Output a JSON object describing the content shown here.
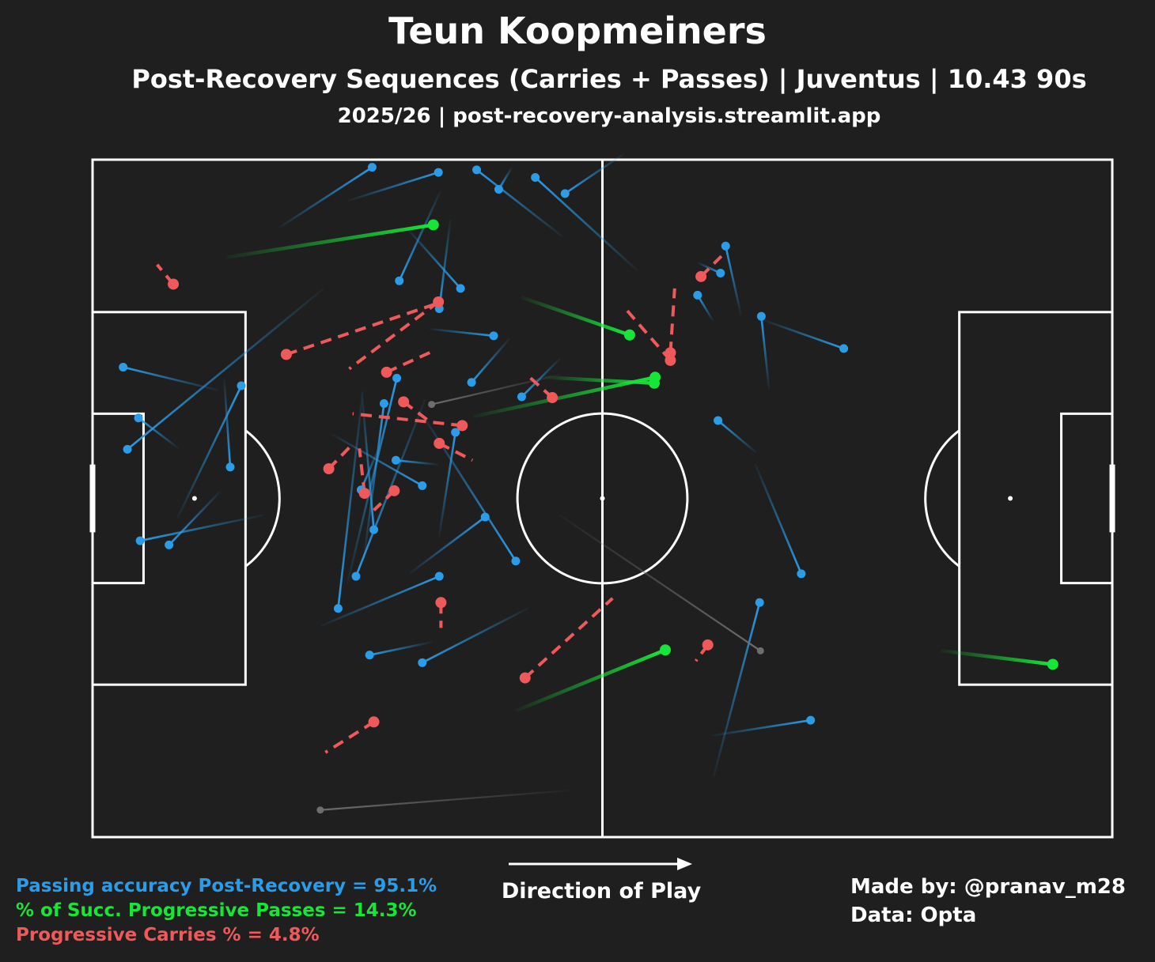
{
  "header": {
    "title": "Teun Koopmeiners",
    "subtitle": "Post-Recovery Sequences (Carries + Passes) | Juventus | 10.43 90s",
    "subtitle2": "2025/26 | post-recovery-analysis.streamlit.app"
  },
  "stats": {
    "passing": "Passing accuracy Post-Recovery = 95.1%",
    "progressive_passes": "% of Succ. Progressive Passes = 14.3%",
    "progressive_carries": "Progressive Carries % = 4.8%"
  },
  "credits": {
    "made_by": "Made by: @pranav_m28",
    "data_source": "Data: Opta"
  },
  "direction_label": "Direction of Play",
  "colors": {
    "background": "#1f1f1f",
    "pass": "#2a9ce8",
    "progressive_pass": "#17e639",
    "carry": "#f0595a",
    "failed": "#6e6e6e",
    "pitch_lines": "#ffffff"
  },
  "chart_data": {
    "type": "scatter",
    "pitch": {
      "length": 120,
      "width": 80
    },
    "passes": [
      [
        30.2,
        75.2,
        40.7,
        78.5
      ],
      [
        22.0,
        72.0,
        32.9,
        79.1
      ],
      [
        42.1,
        72.8,
        40.8,
        62.4
      ],
      [
        39.7,
        60.0,
        47.2,
        59.2
      ],
      [
        40.9,
        76.2,
        36.1,
        65.7
      ],
      [
        37.1,
        71.8,
        43.3,
        64.8
      ],
      [
        14.7,
        52.8,
        3.6,
        55.5
      ],
      [
        27.1,
        64.7,
        4.1,
        45.8
      ],
      [
        10.0,
        46.0,
        5.4,
        49.5
      ],
      [
        15.5,
        54.0,
        16.2,
        43.7
      ],
      [
        39.1,
        51.6,
        31.0,
        30.8
      ],
      [
        15.0,
        40.8,
        9.0,
        34.5
      ],
      [
        28.3,
        47.5,
        38.8,
        41.5
      ],
      [
        10.0,
        37.7,
        17.5,
        53.3
      ],
      [
        20.0,
        38.0,
        5.6,
        35.0
      ],
      [
        27.0,
        25.0,
        40.8,
        30.8
      ],
      [
        33.7,
        46.0,
        31.6,
        41.0
      ],
      [
        40.6,
        44.0,
        35.7,
        44.5
      ],
      [
        40.8,
        35.6,
        42.7,
        47.8
      ],
      [
        55.0,
        56.5,
        50.5,
        52.0
      ],
      [
        38.6,
        50.2,
        49.8,
        32.6
      ],
      [
        30.0,
        30.0,
        35.8,
        54.2
      ],
      [
        37.4,
        31.2,
        46.2,
        37.8
      ],
      [
        31.9,
        32.6,
        34.3,
        51.2
      ],
      [
        49.0,
        58.8,
        44.6,
        53.7
      ],
      [
        49.3,
        79.0,
        47.8,
        76.5
      ],
      [
        55.2,
        71.0,
        45.2,
        78.8
      ],
      [
        64.0,
        67.0,
        52.1,
        77.9
      ],
      [
        62.4,
        80.6,
        55.6,
        76.0
      ],
      [
        71.3,
        67.8,
        73.9,
        66.6
      ],
      [
        73.0,
        61.0,
        71.2,
        64.0
      ],
      [
        76.3,
        61.7,
        74.5,
        69.8
      ],
      [
        78.0,
        44.0,
        83.4,
        31.1
      ],
      [
        79.1,
        61.0,
        88.4,
        57.7
      ],
      [
        79.6,
        53.0,
        78.7,
        61.5
      ],
      [
        78.0,
        45.5,
        73.6,
        49.2
      ],
      [
        73.1,
        7.2,
        78.5,
        27.7
      ],
      [
        39.8,
        23.0,
        32.6,
        21.5
      ],
      [
        31.7,
        52.4,
        33.1,
        36.3
      ],
      [
        73.0,
        12.0,
        84.5,
        13.8
      ],
      [
        31.8,
        52.6,
        28.9,
        27.0
      ],
      [
        51.2,
        27.0,
        38.8,
        20.6
      ]
    ],
    "progressive_passes": [
      [
        16.0,
        68.5,
        40.1,
        72.3
      ],
      [
        50.6,
        63.7,
        63.2,
        59.3
      ],
      [
        53.3,
        54.3,
        66.1,
        53.6
      ],
      [
        45.0,
        49.7,
        66.2,
        54.3
      ],
      [
        100.0,
        22.0,
        113.0,
        20.4
      ],
      [
        50.0,
        15.0,
        67.4,
        22.1
      ]
    ],
    "failed_passes": [
      [
        55.0,
        54.6,
        39.9,
        51.1
      ],
      [
        56.0,
        5.5,
        26.8,
        3.2
      ],
      [
        55.0,
        38.0,
        78.6,
        22.0
      ]
    ],
    "carries": [
      [
        22.8,
        57.0,
        40.2,
        62.9
      ],
      [
        40.7,
        63.2,
        30.2,
        55.3
      ],
      [
        34.6,
        54.9,
        40.3,
        57.5
      ],
      [
        27.8,
        43.5,
        30.3,
        46.1
      ],
      [
        43.5,
        48.6,
        30.6,
        50.0
      ],
      [
        32.0,
        40.6,
        31.4,
        45.9
      ],
      [
        40.8,
        46.5,
        44.7,
        44.5
      ],
      [
        41.0,
        27.7,
        41.0,
        24.7
      ],
      [
        36.6,
        51.4,
        39.9,
        48.9
      ],
      [
        71.6,
        66.2,
        74.0,
        68.6
      ],
      [
        68.0,
        56.3,
        62.8,
        62.3
      ],
      [
        68.0,
        57.2,
        68.5,
        64.8
      ],
      [
        54.1,
        51.9,
        51.0,
        54.7
      ],
      [
        35.5,
        40.9,
        33.1,
        38.6
      ],
      [
        50.9,
        18.8,
        61.2,
        28.2
      ],
      [
        9.5,
        65.3,
        7.6,
        67.6
      ],
      [
        33.1,
        13.6,
        27.4,
        10.0
      ],
      [
        72.4,
        22.7,
        71.0,
        20.8
      ]
    ]
  }
}
